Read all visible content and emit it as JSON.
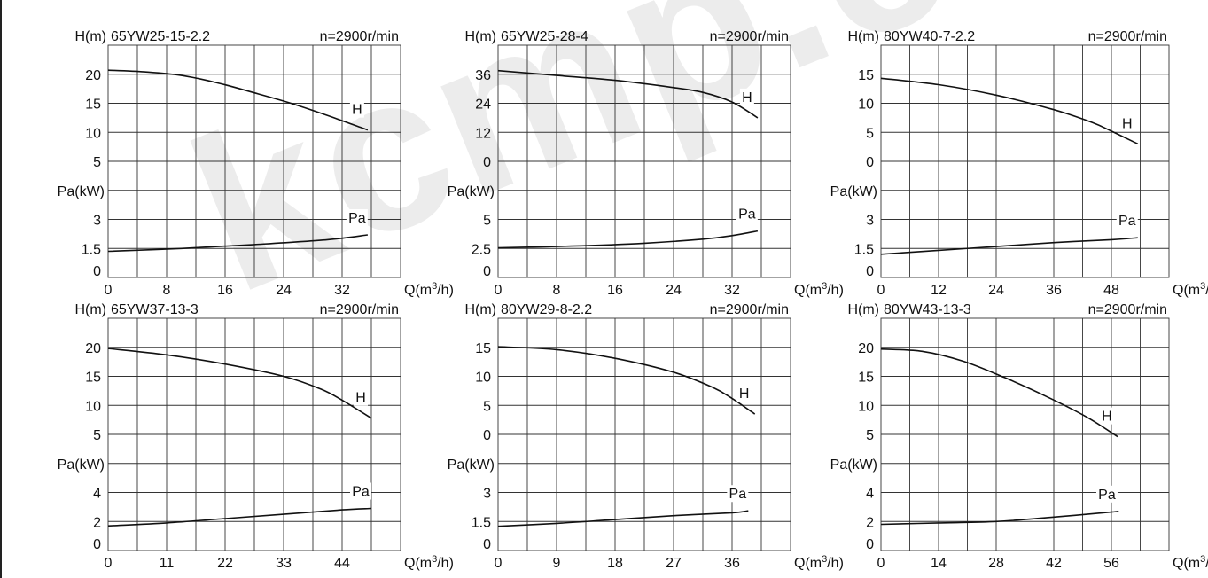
{
  "watermark": "kcmp.cn",
  "colors": {
    "line": "#111111",
    "grid": "#333333",
    "watermark": "#d9d9d9"
  },
  "chart_data": [
    {
      "type": "line",
      "title": "65YW25-15-2.2",
      "speed": "n=2900r/min",
      "h_label": "H(m)",
      "p_label": "Pa(kW)",
      "x_label": "Q(m",
      "x_ticks": [
        0,
        8,
        16,
        24,
        32
      ],
      "xlim": [
        0,
        40
      ],
      "h_ticks": [
        20,
        15,
        10,
        5
      ],
      "p_ticks": [
        3,
        1.5,
        0
      ],
      "series": [
        {
          "name": "H",
          "x": [
            0,
            5,
            10,
            15,
            20,
            25,
            30,
            35.5
          ],
          "y": [
            20.7,
            20.4,
            19.8,
            18.5,
            16.8,
            15.0,
            12.9,
            10.4
          ]
        },
        {
          "name": "Pa",
          "x": [
            0,
            10,
            20,
            30,
            35.5
          ],
          "y": [
            1.35,
            1.5,
            1.7,
            1.95,
            2.2
          ]
        }
      ]
    },
    {
      "type": "line",
      "title": "65YW25-28-4",
      "speed": "n=2900r/min",
      "h_label": "H(m)",
      "p_label": "Pa(kW)",
      "x_label": "Q(m",
      "x_ticks": [
        0,
        8,
        16,
        24,
        32
      ],
      "xlim": [
        0,
        40
      ],
      "h_ticks": [
        36,
        24,
        12,
        0
      ],
      "p_ticks": [
        5,
        2.5,
        0
      ],
      "series": [
        {
          "name": "H",
          "x": [
            0,
            8,
            16,
            24,
            28,
            32,
            35.5
          ],
          "y": [
            37.5,
            35.5,
            33.5,
            30.5,
            28.5,
            24.5,
            18
          ]
        },
        {
          "name": "Pa",
          "x": [
            0,
            10,
            20,
            28,
            32,
            35.5
          ],
          "y": [
            2.55,
            2.7,
            2.95,
            3.3,
            3.6,
            4.0
          ]
        }
      ]
    },
    {
      "type": "line",
      "title": "80YW40-7-2.2",
      "speed": "n=2900r/min",
      "h_label": "H(m)",
      "p_label": "Pa(kW)",
      "x_label": "Q(m",
      "x_ticks": [
        0,
        12,
        24,
        36,
        48
      ],
      "xlim": [
        0,
        60
      ],
      "h_ticks": [
        15,
        10,
        5,
        0
      ],
      "p_ticks": [
        3,
        1.5,
        0
      ],
      "series": [
        {
          "name": "H",
          "x": [
            0,
            12,
            24,
            36,
            44,
            48,
            53.5
          ],
          "y": [
            14.3,
            13.2,
            11.4,
            8.9,
            6.7,
            5.2,
            3.0
          ]
        },
        {
          "name": "Pa",
          "x": [
            0,
            12,
            24,
            36,
            48,
            53.5
          ],
          "y": [
            1.2,
            1.4,
            1.6,
            1.8,
            1.95,
            2.05
          ]
        }
      ]
    },
    {
      "type": "line",
      "title": "65YW37-13-3",
      "speed": "n=2900r/min",
      "h_label": "H(m)",
      "p_label": "Pa(kW)",
      "x_label": "Q(m",
      "x_ticks": [
        0,
        11,
        22,
        33,
        44
      ],
      "xlim": [
        0,
        55
      ],
      "h_ticks": [
        20,
        15,
        10,
        5
      ],
      "p_ticks": [
        4,
        2,
        0
      ],
      "series": [
        {
          "name": "H",
          "x": [
            0,
            11,
            22,
            33,
            40,
            44,
            49.5
          ],
          "y": [
            19.8,
            18.7,
            17.1,
            15.0,
            12.8,
            10.9,
            7.8
          ]
        },
        {
          "name": "Pa",
          "x": [
            0,
            11,
            22,
            33,
            44,
            49.5
          ],
          "y": [
            1.7,
            1.9,
            2.2,
            2.5,
            2.8,
            2.9
          ]
        }
      ]
    },
    {
      "type": "line",
      "title": "80YW29-8-2.2",
      "speed": "n=2900r/min",
      "h_label": "H(m)",
      "p_label": "Pa(kW)",
      "x_label": "Q(m",
      "x_ticks": [
        0,
        9,
        18,
        27,
        36
      ],
      "xlim": [
        0,
        45
      ],
      "h_ticks": [
        15,
        10,
        5,
        0
      ],
      "p_ticks": [
        3,
        1.5,
        0
      ],
      "series": [
        {
          "name": "H",
          "x": [
            0,
            9,
            18,
            27,
            33,
            36,
            39.5
          ],
          "y": [
            15.1,
            14.6,
            13.1,
            10.7,
            8.1,
            6.2,
            3.5
          ]
        },
        {
          "name": "Pa",
          "x": [
            0,
            9,
            18,
            27,
            36,
            38.5
          ],
          "y": [
            1.25,
            1.4,
            1.6,
            1.8,
            1.95,
            2.05
          ]
        }
      ]
    },
    {
      "type": "line",
      "title": "80YW43-13-3",
      "speed": "n=2900r/min",
      "h_label": "H(m)",
      "p_label": "Pa(kW)",
      "x_label": "Q(m",
      "x_ticks": [
        0,
        14,
        28,
        42,
        56
      ],
      "xlim": [
        0,
        70
      ],
      "h_ticks": [
        20,
        15,
        10,
        5
      ],
      "p_ticks": [
        4,
        2,
        0
      ],
      "series": [
        {
          "name": "H",
          "x": [
            0,
            10,
            20,
            30,
            40,
            50,
            57.5
          ],
          "y": [
            19.7,
            19.3,
            17.6,
            14.8,
            11.6,
            8.0,
            4.6
          ]
        },
        {
          "name": "Pa",
          "x": [
            0,
            14,
            28,
            42,
            56,
            57.5
          ],
          "y": [
            1.8,
            1.9,
            2.0,
            2.3,
            2.65,
            2.7
          ]
        }
      ]
    }
  ]
}
